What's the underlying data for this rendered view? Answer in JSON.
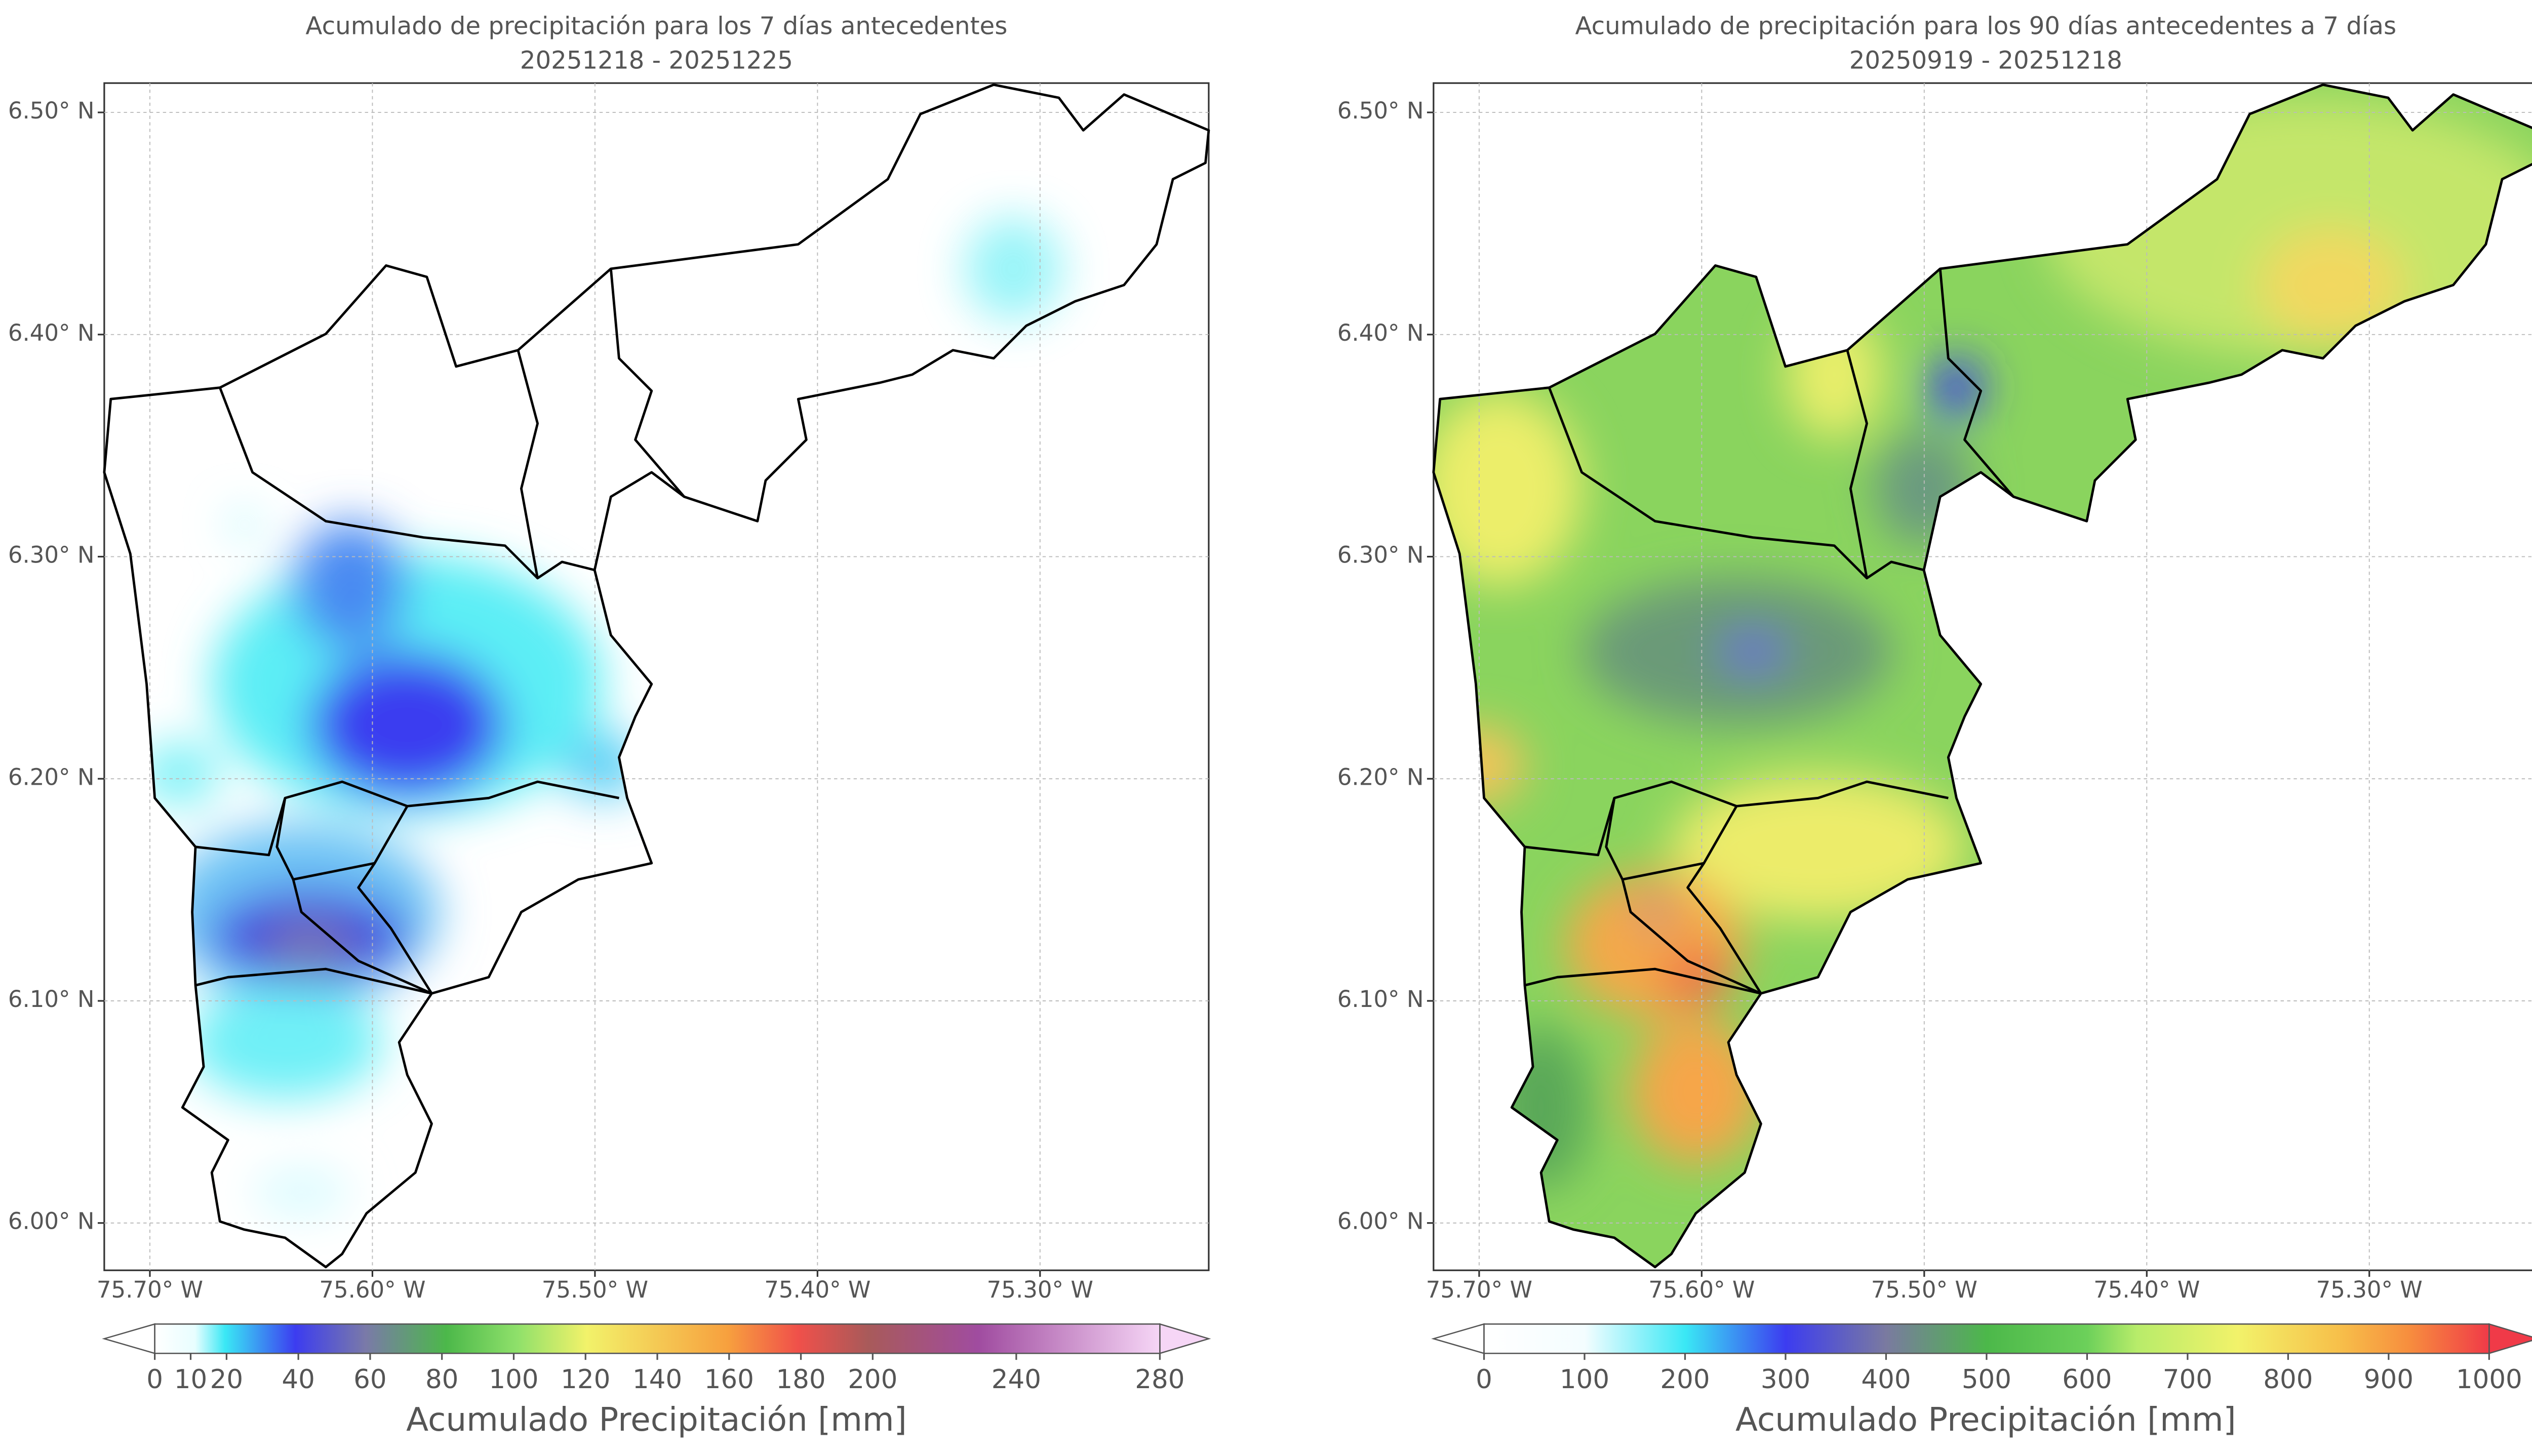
{
  "maps": [
    {
      "title": "Acumulado de precipitación para los 7 días antecedentes",
      "subtitle": "20251218 - 20251225",
      "xlim": [
        -75.7205,
        -75.2242
      ],
      "ylim": [
        5.9787,
        6.5132
      ],
      "xticks": [
        {
          "value": -75.7,
          "label": "75.70° W"
        },
        {
          "value": -75.6,
          "label": "75.60° W"
        },
        {
          "value": -75.5,
          "label": "75.50° W"
        },
        {
          "value": -75.4,
          "label": "75.40° W"
        },
        {
          "value": -75.3,
          "label": "75.30° W"
        }
      ],
      "yticks": [
        {
          "value": 6.0,
          "label": "6.00° N"
        },
        {
          "value": 6.1,
          "label": "6.10° N"
        },
        {
          "value": 6.2,
          "label": "6.20° N"
        },
        {
          "value": 6.3,
          "label": "6.30° N"
        },
        {
          "value": 6.4,
          "label": "6.40° N"
        },
        {
          "value": 6.5,
          "label": "6.50° N"
        }
      ],
      "colorbar": {
        "label": "Acumulado Precipitación [mm]",
        "lim": [
          0,
          280
        ],
        "ticks": [
          0,
          10,
          20,
          40,
          60,
          80,
          100,
          120,
          140,
          160,
          180,
          200,
          240,
          280
        ]
      }
    },
    {
      "title": "Acumulado de precipitación para los 90 días antecedentes a 7 días",
      "subtitle": "20250919 - 20251218",
      "xlim": [
        -75.7205,
        -75.2242
      ],
      "ylim": [
        5.9787,
        6.5132
      ],
      "xticks": [
        {
          "value": -75.7,
          "label": "75.70° W"
        },
        {
          "value": -75.6,
          "label": "75.60° W"
        },
        {
          "value": -75.5,
          "label": "75.50° W"
        },
        {
          "value": -75.4,
          "label": "75.40° W"
        },
        {
          "value": -75.3,
          "label": "75.30° W"
        }
      ],
      "yticks": [
        {
          "value": 6.0,
          "label": "6.00° N"
        },
        {
          "value": 6.1,
          "label": "6.10° N"
        },
        {
          "value": 6.2,
          "label": "6.20° N"
        },
        {
          "value": 6.3,
          "label": "6.30° N"
        },
        {
          "value": 6.4,
          "label": "6.40° N"
        },
        {
          "value": 6.5,
          "label": "6.50° N"
        }
      ],
      "colorbar": {
        "label": "Acumulado Precipitación [mm]",
        "lim": [
          0,
          1000
        ],
        "ticks": [
          0,
          100,
          200,
          300,
          400,
          500,
          600,
          700,
          800,
          900,
          1000
        ]
      }
    }
  ]
}
